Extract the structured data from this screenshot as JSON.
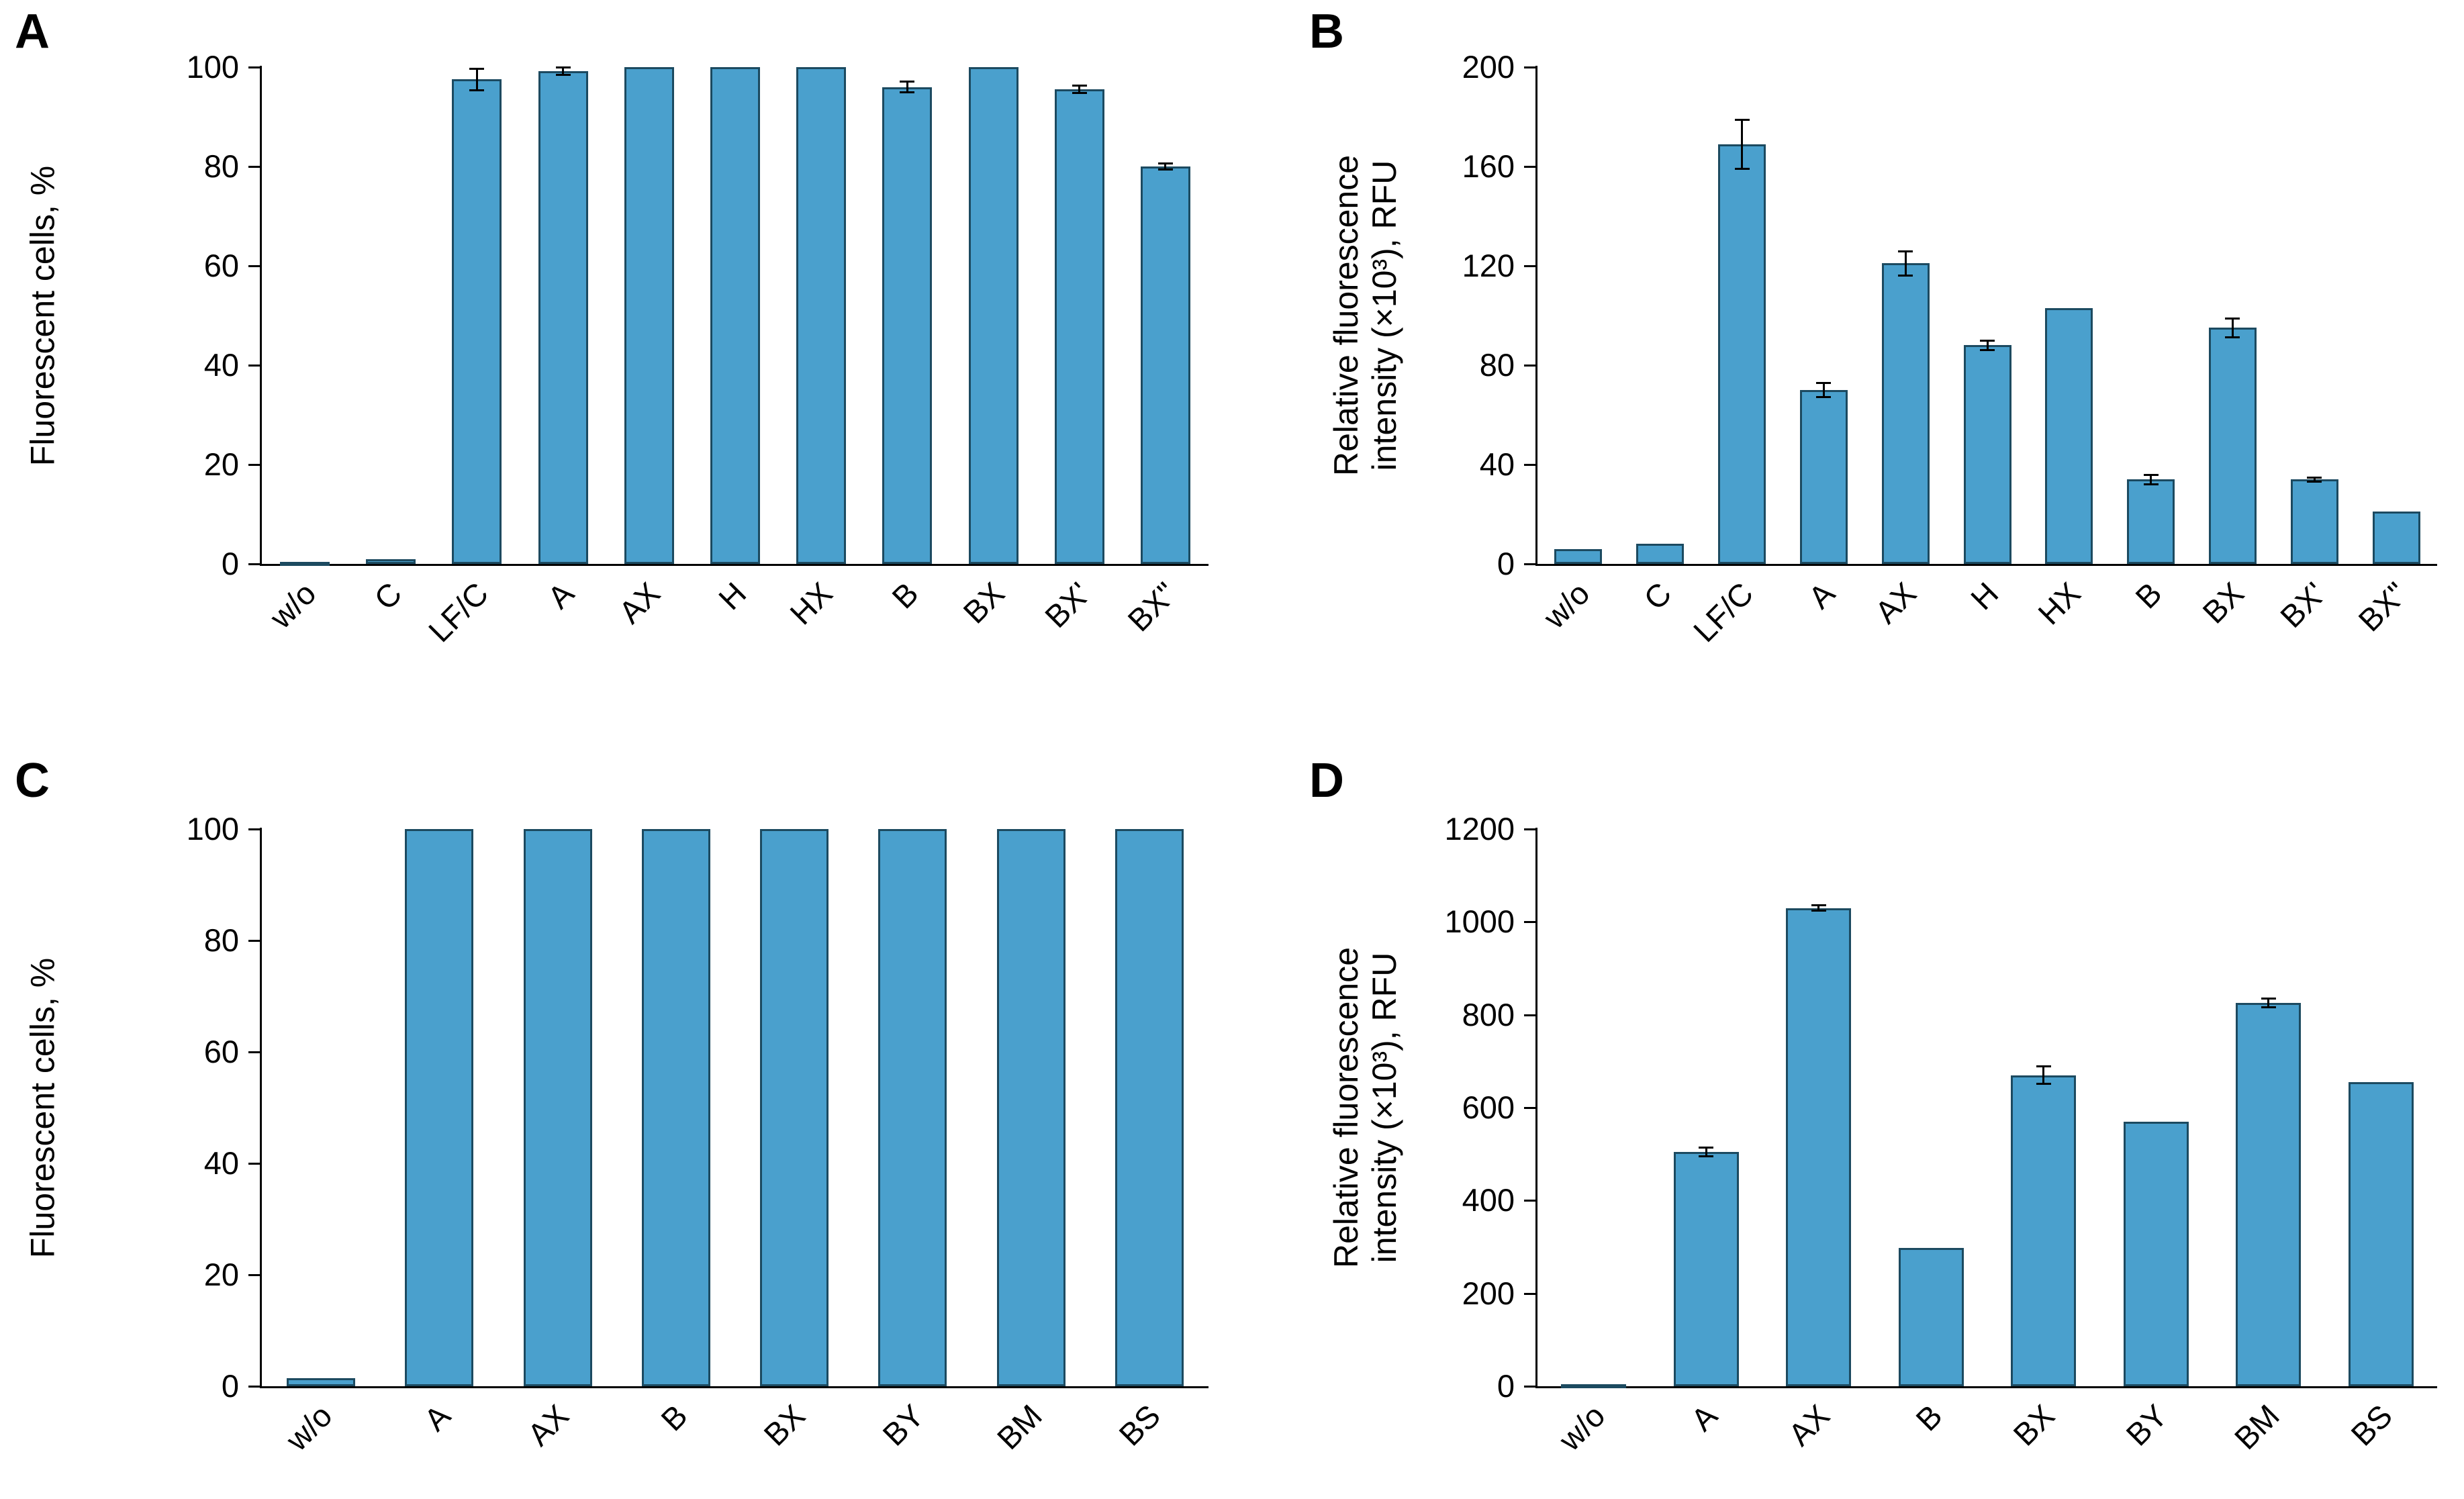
{
  "figure": {
    "background": "#ffffff",
    "bar_fill": "#4aa0cd",
    "bar_stroke": "#1c4a60",
    "axis_color": "#000000",
    "text_color": "#000000"
  },
  "chart_data": [
    {
      "panel": "A",
      "type": "bar",
      "ylabel_lines": [
        "Fluorescent cells, %"
      ],
      "categories": [
        "w/o",
        "C",
        "LF/C",
        "A",
        "AX",
        "H",
        "HX",
        "B",
        "BX",
        "BX'",
        "BX\""
      ],
      "values": [
        0.4,
        1.0,
        97.5,
        99.2,
        100,
        100,
        100,
        96,
        100,
        95.5,
        80
      ],
      "errors": [
        0,
        0,
        2.2,
        0.8,
        0,
        0,
        0,
        1.2,
        0,
        0.8,
        0.7
      ],
      "ylim": [
        0,
        100
      ],
      "yticks": [
        0,
        20,
        40,
        60,
        80,
        100
      ],
      "grid": false,
      "legend": null
    },
    {
      "panel": "B",
      "type": "bar",
      "ylabel_lines": [
        "Relative fluorescence",
        "intensity (×10³), RFU"
      ],
      "categories": [
        "w/o",
        "C",
        "LF/C",
        "A",
        "AX",
        "H",
        "HX",
        "B",
        "BX",
        "BX'",
        "BX\""
      ],
      "values": [
        6,
        8,
        169,
        70,
        121,
        88,
        103,
        34,
        95,
        34,
        21
      ],
      "errors": [
        0,
        0,
        10,
        3,
        5,
        2,
        0,
        2,
        4,
        1,
        0
      ],
      "ylim": [
        0,
        200
      ],
      "yticks": [
        0,
        40,
        80,
        120,
        160,
        200
      ],
      "grid": false,
      "legend": null
    },
    {
      "panel": "C",
      "type": "bar",
      "ylabel_lines": [
        "Fluorescent cells, %"
      ],
      "categories": [
        "w/o",
        "A",
        "AX",
        "B",
        "BX",
        "BY",
        "BM",
        "BS"
      ],
      "values": [
        1.5,
        100,
        100,
        100,
        100,
        100,
        100,
        100
      ],
      "errors": [
        0,
        0,
        0,
        0,
        0,
        0,
        0,
        0
      ],
      "ylim": [
        0,
        100
      ],
      "yticks": [
        0,
        20,
        40,
        60,
        80,
        100
      ],
      "grid": false,
      "legend": null
    },
    {
      "panel": "D",
      "type": "bar",
      "ylabel_lines": [
        "Relative fluorescence",
        "intensity (×10³), RFU"
      ],
      "categories": [
        "w/o",
        "A",
        "AX",
        "B",
        "BX",
        "BY",
        "BM",
        "BS"
      ],
      "values": [
        4,
        505,
        1030,
        298,
        670,
        570,
        825,
        655
      ],
      "errors": [
        0,
        10,
        6,
        0,
        20,
        0,
        10,
        0
      ],
      "ylim": [
        0,
        1200
      ],
      "yticks": [
        0,
        200,
        400,
        600,
        800,
        1000,
        1200
      ],
      "grid": false,
      "legend": null
    }
  ]
}
